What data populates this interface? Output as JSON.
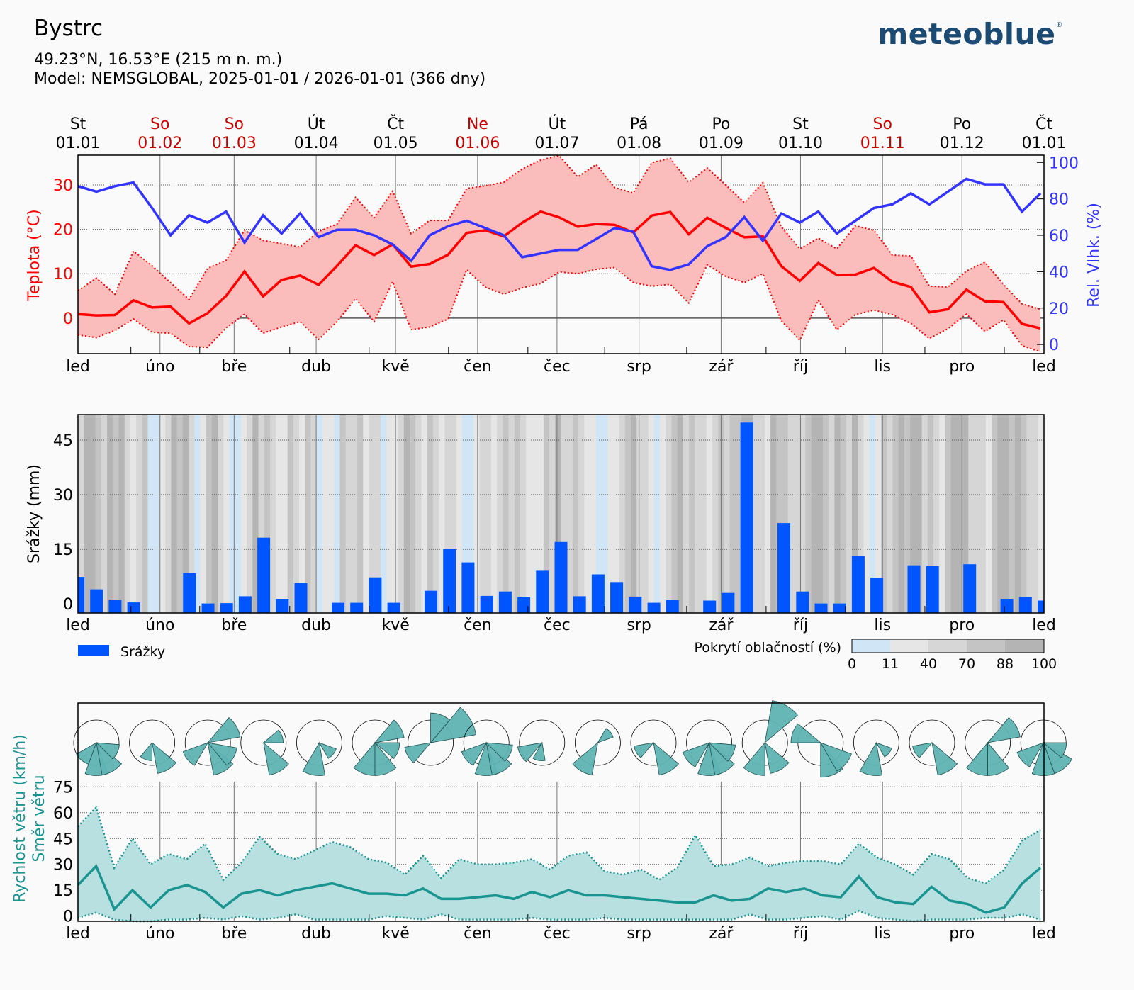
{
  "header": {
    "title": "Bystrc",
    "coords": "49.23°N, 16.53°E (215 m n. m.)",
    "model": "Model: NEMSGLOBAL, 2025-01-01 / 2026-01-01 (366 dny)",
    "logo": "meteoblue"
  },
  "colors": {
    "temp": "#ff0000",
    "temp_band": "#fbbcbc",
    "humidity": "#3333ff",
    "precip": "#0055ff",
    "wind": "#1a9490",
    "wind_band": "#b8e0e0",
    "wind_rose": "#5fb3b3",
    "weekend": "#cc0000",
    "cloud_scale": [
      "#d0e6f6",
      "#e6e6e6",
      "#d6d6d6",
      "#c4c4c4",
      "#b4b4b4"
    ]
  },
  "chart_data": [
    {
      "type": "line",
      "name": "temperature-humidity",
      "top_axis": [
        {
          "day": "St",
          "date": "01.01",
          "weekend": false
        },
        {
          "day": "So",
          "date": "01.02",
          "weekend": true
        },
        {
          "day": "So",
          "date": "01.03",
          "weekend": true
        },
        {
          "day": "Út",
          "date": "01.04",
          "weekend": false
        },
        {
          "day": "Čt",
          "date": "01.05",
          "weekend": false
        },
        {
          "day": "Ne",
          "date": "01.06",
          "weekend": true
        },
        {
          "day": "Út",
          "date": "01.07",
          "weekend": false
        },
        {
          "day": "Pá",
          "date": "01.08",
          "weekend": false
        },
        {
          "day": "Po",
          "date": "01.09",
          "weekend": false
        },
        {
          "day": "St",
          "date": "01.10",
          "weekend": false
        },
        {
          "day": "So",
          "date": "01.11",
          "weekend": true
        },
        {
          "day": "Po",
          "date": "01.12",
          "weekend": false
        },
        {
          "day": "Čt",
          "date": "01.01",
          "weekend": false
        }
      ],
      "month_days": [
        0,
        31,
        59,
        90,
        120,
        151,
        181,
        212,
        243,
        273,
        304,
        334,
        365
      ],
      "months": [
        "led",
        "úno",
        "bře",
        "dub",
        "kvě",
        "čen",
        "čec",
        "srp",
        "zář",
        "říj",
        "lis",
        "pro",
        "led"
      ],
      "ylabel": "Teplota (°C)",
      "y2label": "Rel. Vlhk. (%)",
      "ylim": [
        -8,
        36.7
      ],
      "y2lim": [
        -5,
        104
      ],
      "yticks": [
        0,
        10,
        20,
        30
      ],
      "y2ticks": [
        0,
        20,
        40,
        60,
        80,
        100
      ],
      "grid": true,
      "series": [
        {
          "name": "Teplota průměr",
          "values": [
            0.9,
            0.6,
            0.7,
            4.0,
            2.4,
            2.6,
            -1.2,
            1.1,
            5.0,
            10.5,
            4.9,
            8.6,
            9.6,
            7.5,
            11.8,
            16.4,
            14.2,
            16.6,
            11.6,
            12.2,
            14.3,
            19.2,
            19.8,
            18.4,
            21.5,
            24.0,
            22.7,
            20.6,
            21.2,
            21.0,
            19.3,
            23.1,
            23.9,
            18.9,
            22.6,
            20.3,
            18.2,
            18.4,
            11.7,
            8.4,
            12.4,
            9.7,
            9.8,
            11.3,
            8.2,
            7.0,
            1.3,
            2.0,
            6.4,
            3.8,
            3.6,
            -1.3,
            -2.3
          ]
        },
        {
          "name": "Teplota max",
          "values": [
            6.2,
            9.0,
            5.4,
            15.1,
            11.8,
            8.0,
            4.2,
            11.2,
            13.0,
            19.8,
            17.5,
            16.8,
            16.0,
            19.5,
            21.2,
            27.2,
            22.6,
            28.6,
            19.0,
            22.0,
            22.0,
            29.2,
            29.8,
            30.6,
            33.6,
            35.6,
            36.6,
            31.8,
            34.6,
            29.4,
            28.2,
            35.0,
            36.0,
            30.6,
            33.8,
            30.0,
            26.0,
            30.5,
            20.6,
            15.6,
            18.0,
            15.6,
            20.8,
            19.8,
            14.2,
            14.0,
            7.2,
            7.0,
            10.6,
            12.6,
            7.6,
            3.2,
            2.0
          ]
        },
        {
          "name": "Teplota min",
          "values": [
            -3.8,
            -4.4,
            -2.8,
            -0.2,
            -3.2,
            -3.4,
            -6.4,
            -6.6,
            -2.2,
            0.9,
            -3.4,
            -2.0,
            -0.8,
            -4.8,
            -0.8,
            4.4,
            -0.8,
            8.2,
            -2.6,
            -2.0,
            -0.2,
            10.9,
            7.0,
            5.4,
            6.8,
            7.8,
            10.4,
            10.0,
            11.0,
            11.4,
            8.0,
            7.2,
            7.6,
            3.4,
            12.0,
            9.4,
            8.0,
            10.0,
            -0.6,
            -5.0,
            4.0,
            -2.6,
            0.8,
            1.8,
            0.8,
            -1.2,
            -4.6,
            -2.4,
            0.9,
            -3.0,
            -0.4,
            -6.2,
            -7.6
          ]
        },
        {
          "name": "Rel. vlhkost",
          "axis": "right",
          "values": [
            87,
            84,
            87,
            89,
            75,
            60,
            71,
            67,
            73,
            56,
            71,
            61,
            72,
            59,
            63,
            63,
            60,
            55,
            46,
            60,
            65,
            68,
            64,
            60,
            48,
            50,
            52,
            52,
            58,
            64,
            62,
            43,
            41,
            44,
            54,
            59,
            70,
            57,
            72,
            67,
            73,
            61,
            68,
            75,
            77,
            83,
            77,
            84,
            91,
            88,
            88,
            73,
            83
          ]
        }
      ]
    },
    {
      "type": "bar",
      "name": "precipitation",
      "ylabel": "Srážky (mm)",
      "ylim": [
        -2.5,
        52
      ],
      "yticks": [
        0,
        15,
        30,
        45
      ],
      "legend": {
        "series_label": "Srážky",
        "cloud_label": "Pokrytí oblačností (%)",
        "cloud_ticks": [
          "0",
          "11",
          "40",
          "70",
          "88",
          "100"
        ]
      },
      "values": [
        7.4,
        4.0,
        1.2,
        0.4,
        0,
        0,
        8.4,
        0.1,
        0.2,
        2.1,
        18.2,
        1.4,
        5.7,
        0,
        0.3,
        0.3,
        7.3,
        0.3,
        0,
        3.6,
        15.1,
        11.4,
        2.2,
        3.4,
        1.8,
        9.1,
        17.0,
        2.1,
        8.1,
        6.0,
        2.0,
        0.3,
        1.0,
        0,
        0.9,
        3.0,
        49.8,
        0,
        22.2,
        3.4,
        0.1,
        0.1,
        13.2,
        7.2,
        0,
        10.6,
        10.4,
        0,
        10.9,
        0,
        1.4,
        1.9,
        0.9
      ],
      "cloud_cover": [
        55,
        88,
        95,
        80,
        60,
        90,
        75,
        100,
        40,
        20,
        60,
        80,
        5,
        10,
        20,
        55,
        90,
        70,
        96,
        40,
        10,
        30,
        70,
        90,
        60,
        20,
        10,
        5,
        35,
        65,
        88,
        45,
        80,
        60,
        30,
        15,
        70,
        50,
        25,
        80,
        45,
        5,
        20,
        35,
        10,
        70,
        40,
        60,
        85,
        30,
        50,
        65,
        8,
        15,
        25,
        45,
        88,
        70,
        50,
        30,
        75,
        55,
        20,
        40,
        60,
        35,
        10,
        5,
        15,
        65,
        40,
        30,
        55,
        80,
        45,
        70,
        60,
        35,
        25,
        15,
        85,
        60,
        90,
        40,
        50,
        70,
        65,
        30,
        20,
        10,
        5,
        15,
        30,
        50,
        75,
        88,
        60,
        40,
        20,
        10,
        25,
        55,
        70,
        95,
        65,
        80,
        50,
        40,
        30,
        60,
        75,
        45,
        80,
        70,
        88,
        92,
        60,
        50,
        30,
        95,
        70,
        85,
        55,
        40,
        65,
        70,
        100,
        90,
        75,
        60,
        95,
        80,
        45,
        88,
        50,
        30,
        10,
        20,
        70,
        65,
        80,
        90,
        85,
        100,
        95,
        60,
        70,
        40,
        35,
        80,
        95,
        88,
        92,
        65,
        50,
        45,
        25,
        80,
        95,
        100,
        70,
        88,
        85,
        60,
        55,
        20
      ]
    },
    {
      "type": "line",
      "name": "wind",
      "ylabel": "Rychlost větru (km/h)",
      "ylabel2": "Směr větru",
      "ylim": [
        -3,
        78
      ],
      "yticks": [
        0,
        15,
        30,
        45,
        60,
        75
      ],
      "grid": true,
      "series": [
        {
          "name": "Rychlost větru průměr",
          "values": [
            18,
            29,
            4,
            15,
            5,
            15,
            18,
            14,
            5,
            13,
            15,
            12,
            15,
            17,
            19,
            16,
            13,
            13,
            12,
            16,
            10,
            10,
            11,
            12,
            10,
            14,
            11,
            15,
            12,
            12,
            11,
            10,
            9,
            8,
            8,
            12,
            9,
            10,
            16,
            14,
            16,
            12,
            11,
            23,
            11,
            8,
            7,
            17,
            9,
            7,
            2,
            5,
            19,
            28
          ]
        },
        {
          "name": "Rychlost větru max",
          "values": [
            52,
            63,
            28,
            45,
            30,
            36,
            33,
            42,
            21,
            31,
            46,
            36,
            33,
            38,
            43,
            40,
            33,
            31,
            24,
            35,
            22,
            33,
            30,
            30,
            31,
            33,
            27,
            35,
            37,
            26,
            24,
            27,
            21,
            28,
            47,
            29,
            30,
            34,
            29,
            31,
            32,
            32,
            30,
            42,
            34,
            30,
            24,
            36,
            33,
            22,
            19,
            27,
            44,
            50
          ]
        },
        {
          "name": "Rychlost větru min",
          "values": [
            -1,
            2,
            -2,
            -3,
            -3,
            -2,
            -2,
            -1,
            -2,
            0,
            -2,
            -1,
            1,
            -2,
            -2,
            -2,
            -2,
            0,
            -1,
            -2,
            1,
            -2,
            -2,
            -2,
            -2,
            -1,
            -2,
            -2,
            -2,
            -1,
            -2,
            -2,
            -2,
            -2,
            -2,
            -2,
            -2,
            1,
            -2,
            -2,
            -1,
            0,
            -2,
            3,
            -1,
            -2,
            -3,
            -2,
            -2,
            -2,
            -1,
            -1,
            1,
            -2
          ]
        }
      ],
      "wind_roses": [
        {
          "petals": [
            [
              220,
              0.7
            ],
            [
              180,
              1.0
            ],
            [
              150,
              1.0
            ],
            [
              115,
              0.7
            ]
          ]
        },
        {
          "petals": [
            [
              200,
              0.55
            ],
            [
              150,
              0.95
            ]
          ]
        },
        {
          "petals": [
            [
              230,
              0.8
            ],
            [
              150,
              1.0
            ],
            [
              120,
              0.9
            ],
            [
              60,
              1.0
            ]
          ]
        },
        {
          "petals": [
            [
              70,
              0.6
            ],
            [
              150,
              1.0
            ]
          ]
        },
        {
          "petals": [
            [
              190,
              1.0
            ],
            [
              130,
              0.55
            ]
          ]
        },
        {
          "petals": [
            [
              200,
              1.0
            ],
            [
              160,
              1.0
            ],
            [
              110,
              0.75
            ],
            [
              60,
              0.9
            ]
          ]
        },
        {
          "petals": [
            [
              240,
              0.8
            ],
            [
              60,
              1.4
            ],
            [
              20,
              0.9
            ]
          ]
        },
        {
          "petals": [
            [
              230,
              0.8
            ],
            [
              180,
              1.0
            ],
            [
              150,
              1.0
            ],
            [
              115,
              0.8
            ]
          ]
        },
        {
          "petals": [
            [
              240,
              0.75
            ],
            [
              190,
              0.55
            ]
          ]
        },
        {
          "petals": [
            [
              50,
              0.5
            ],
            [
              210,
              1.0
            ]
          ]
        },
        {
          "petals": [
            [
              240,
              0.6
            ],
            [
              150,
              1.0
            ]
          ]
        },
        {
          "petals": [
            [
              230,
              0.85
            ],
            [
              180,
              1.0
            ],
            [
              150,
              1.0
            ],
            [
              115,
              0.8
            ]
          ]
        },
        {
          "petals": [
            [
              200,
              1.0
            ],
            [
              150,
              0.95
            ],
            [
              30,
              1.3
            ]
          ]
        },
        {
          "petals": [
            [
              290,
              0.9
            ],
            [
              160,
              1.05
            ],
            [
              130,
              1.0
            ]
          ]
        },
        {
          "petals": [
            [
              190,
              1.0
            ],
            [
              130,
              0.5
            ]
          ]
        },
        {
          "petals": [
            [
              240,
              0.6
            ],
            [
              150,
              1.0
            ]
          ]
        },
        {
          "petals": [
            [
              200,
              1.0
            ],
            [
              160,
              1.0
            ],
            [
              60,
              1.0
            ]
          ]
        },
        {
          "petals": [
            [
              230,
              0.85
            ],
            [
              180,
              1.0
            ],
            [
              140,
              1.0
            ],
            [
              110,
              0.7
            ]
          ]
        }
      ]
    }
  ]
}
